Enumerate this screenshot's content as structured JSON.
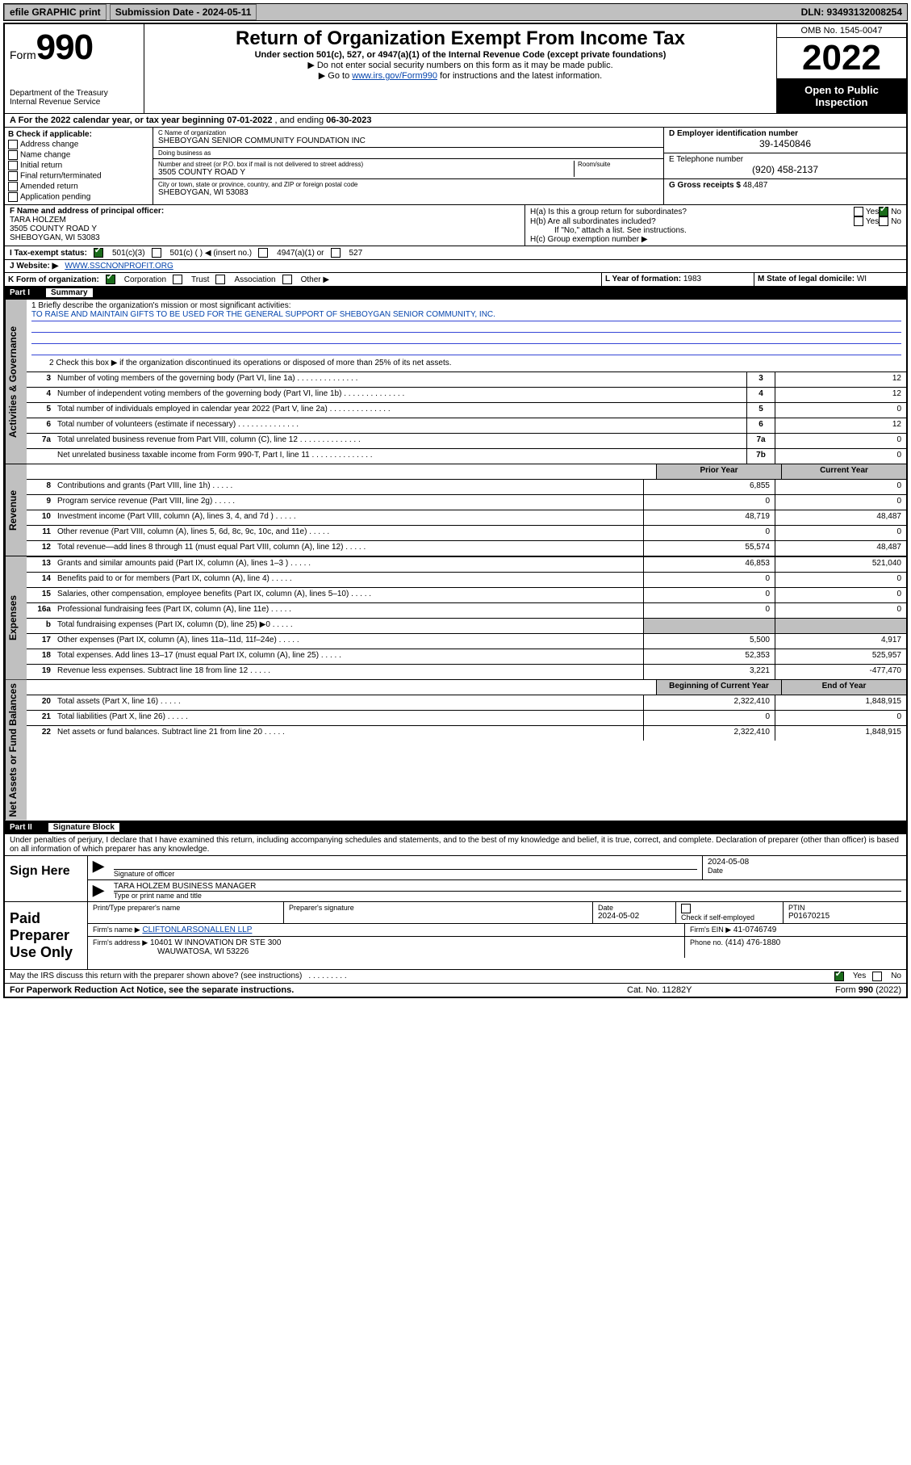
{
  "topbar": {
    "efile": "efile GRAPHIC print",
    "submission_label": "Submission Date - 2024-05-11",
    "dln": "DLN: 93493132008254"
  },
  "header": {
    "form_word": "Form",
    "form_num": "990",
    "dept": "Department of the Treasury",
    "irs": "Internal Revenue Service",
    "title": "Return of Organization Exempt From Income Tax",
    "sub": "Under section 501(c), 527, or 4947(a)(1) of the Internal Revenue Code (except private foundations)",
    "note1": "▶ Do not enter social security numbers on this form as it may be made public.",
    "note2_pre": "▶ Go to ",
    "note2_link": "www.irs.gov/Form990",
    "note2_post": " for instructions and the latest information.",
    "omb": "OMB No. 1545-0047",
    "year": "2022",
    "open": "Open to Public Inspection"
  },
  "lineA": {
    "text_pre": "A For the 2022 calendar year, or tax year beginning ",
    "begin": "07-01-2022",
    "mid": " , and ending ",
    "end": "06-30-2023"
  },
  "B": {
    "label": "B Check if applicable:",
    "opts": [
      "Address change",
      "Name change",
      "Initial return",
      "Final return/terminated",
      "Amended return",
      "Application pending"
    ]
  },
  "C": {
    "name_label": "C Name of organization",
    "name": "SHEBOYGAN SENIOR COMMUNITY FOUNDATION INC",
    "dba_label": "Doing business as",
    "dba": "",
    "addr_label": "Number and street (or P.O. box if mail is not delivered to street address)",
    "room_label": "Room/suite",
    "addr": "3505 COUNTY ROAD Y",
    "city_label": "City or town, state or province, country, and ZIP or foreign postal code",
    "city": "SHEBOYGAN, WI  53083"
  },
  "D": {
    "label": "D Employer identification number",
    "val": "39-1450846"
  },
  "E": {
    "label": "E Telephone number",
    "val": "(920) 458-2137"
  },
  "G": {
    "label": "G Gross receipts $",
    "val": "48,487"
  },
  "F": {
    "label": "F Name and address of principal officer:",
    "name": "TARA HOLZEM",
    "addr1": "3505 COUNTY ROAD Y",
    "addr2": "SHEBOYGAN, WI  53083"
  },
  "H": {
    "a": "H(a)  Is this a group return for subordinates?",
    "b": "H(b)  Are all subordinates included?",
    "b_note": "If \"No,\" attach a list. See instructions.",
    "c": "H(c)  Group exemption number ▶",
    "yes": "Yes",
    "no": "No"
  },
  "I": {
    "label": "I  Tax-exempt status:",
    "o1": "501(c)(3)",
    "o2": "501(c) (  ) ◀ (insert no.)",
    "o3": "4947(a)(1) or",
    "o4": "527"
  },
  "J": {
    "label": "J  Website: ▶",
    "val": "WWW.SSCNONPROFIT.ORG"
  },
  "K": {
    "label": "K Form of organization:",
    "o1": "Corporation",
    "o2": "Trust",
    "o3": "Association",
    "o4": "Other ▶"
  },
  "L": {
    "label": "L Year of formation:",
    "val": "1983"
  },
  "M": {
    "label": "M State of legal domicile:",
    "val": "WI"
  },
  "part1": {
    "tag": "Part I",
    "title": "Summary"
  },
  "summary": {
    "q1": "1  Briefly describe the organization's mission or most significant activities:",
    "mission": "TO RAISE AND MAINTAIN GIFTS TO BE USED FOR THE GENERAL SUPPORT OF SHEBOYGAN SENIOR COMMUNITY, INC.",
    "q2": "2    Check this box ▶         if the organization discontinued its operations or disposed of more than 25% of its net assets.",
    "rows_simple": [
      {
        "n": "3",
        "d": "Number of voting members of the governing body (Part VI, line 1a)",
        "k": "3",
        "v": "12"
      },
      {
        "n": "4",
        "d": "Number of independent voting members of the governing body (Part VI, line 1b)",
        "k": "4",
        "v": "12"
      },
      {
        "n": "5",
        "d": "Total number of individuals employed in calendar year 2022 (Part V, line 2a)",
        "k": "5",
        "v": "0"
      },
      {
        "n": "6",
        "d": "Total number of volunteers (estimate if necessary)",
        "k": "6",
        "v": "12"
      },
      {
        "n": "7a",
        "d": "Total unrelated business revenue from Part VIII, column (C), line 12",
        "k": "7a",
        "v": "0"
      },
      {
        "n": "",
        "d": "Net unrelated business taxable income from Form 990-T, Part I, line 11",
        "k": "7b",
        "v": "0"
      }
    ],
    "col_prior": "Prior Year",
    "col_current": "Current Year",
    "revenue": [
      {
        "n": "8",
        "d": "Contributions and grants (Part VIII, line 1h)",
        "p": "6,855",
        "c": "0"
      },
      {
        "n": "9",
        "d": "Program service revenue (Part VIII, line 2g)",
        "p": "0",
        "c": "0"
      },
      {
        "n": "10",
        "d": "Investment income (Part VIII, column (A), lines 3, 4, and 7d )",
        "p": "48,719",
        "c": "48,487"
      },
      {
        "n": "11",
        "d": "Other revenue (Part VIII, column (A), lines 5, 6d, 8c, 9c, 10c, and 11e)",
        "p": "0",
        "c": "0"
      },
      {
        "n": "12",
        "d": "Total revenue—add lines 8 through 11 (must equal Part VIII, column (A), line 12)",
        "p": "55,574",
        "c": "48,487"
      }
    ],
    "expenses": [
      {
        "n": "13",
        "d": "Grants and similar amounts paid (Part IX, column (A), lines 1–3 )",
        "p": "46,853",
        "c": "521,040"
      },
      {
        "n": "14",
        "d": "Benefits paid to or for members (Part IX, column (A), line 4)",
        "p": "0",
        "c": "0"
      },
      {
        "n": "15",
        "d": "Salaries, other compensation, employee benefits (Part IX, column (A), lines 5–10)",
        "p": "0",
        "c": "0"
      },
      {
        "n": "16a",
        "d": "Professional fundraising fees (Part IX, column (A), line 11e)",
        "p": "0",
        "c": "0"
      },
      {
        "n": "b",
        "d": "Total fundraising expenses (Part IX, column (D), line 25) ▶0",
        "p": "shade",
        "c": "shade"
      },
      {
        "n": "17",
        "d": "Other expenses (Part IX, column (A), lines 11a–11d, 11f–24e)",
        "p": "5,500",
        "c": "4,917"
      },
      {
        "n": "18",
        "d": "Total expenses. Add lines 13–17 (must equal Part IX, column (A), line 25)",
        "p": "52,353",
        "c": "525,957"
      },
      {
        "n": "19",
        "d": "Revenue less expenses. Subtract line 18 from line 12",
        "p": "3,221",
        "c": "-477,470"
      }
    ],
    "col_begin": "Beginning of Current Year",
    "col_end": "End of Year",
    "netassets": [
      {
        "n": "20",
        "d": "Total assets (Part X, line 16)",
        "p": "2,322,410",
        "c": "1,848,915"
      },
      {
        "n": "21",
        "d": "Total liabilities (Part X, line 26)",
        "p": "0",
        "c": "0"
      },
      {
        "n": "22",
        "d": "Net assets or fund balances. Subtract line 21 from line 20",
        "p": "2,322,410",
        "c": "1,848,915"
      }
    ]
  },
  "vtabs": {
    "gov": "Activities & Governance",
    "rev": "Revenue",
    "exp": "Expenses",
    "net": "Net Assets or Fund Balances"
  },
  "part2": {
    "tag": "Part II",
    "title": "Signature Block"
  },
  "sig": {
    "decl": "Under penalties of perjury, I declare that I have examined this return, including accompanying schedules and statements, and to the best of my knowledge and belief, it is true, correct, and complete. Declaration of preparer (other than officer) is based on all information of which preparer has any knowledge.",
    "sign_here": "Sign Here",
    "sig_officer": "Signature of officer",
    "date_lbl": "Date",
    "sig_date": "2024-05-08",
    "name_title": "TARA HOLZEM  BUSINESS MANAGER",
    "name_title_lbl": "Type or print name and title",
    "paid": "Paid Preparer Use Only",
    "p_name_lbl": "Print/Type preparer's name",
    "p_sig_lbl": "Preparer's signature",
    "p_date_lbl": "Date",
    "p_date": "2024-05-02",
    "p_check": "Check         if self-employed",
    "ptin_lbl": "PTIN",
    "ptin": "P01670215",
    "firm_name_lbl": "Firm's name    ▶",
    "firm_name": "CLIFTONLARSONALLEN LLP",
    "firm_ein_lbl": "Firm's EIN ▶",
    "firm_ein": "41-0746749",
    "firm_addr_lbl": "Firm's address ▶",
    "firm_addr1": "10401 W INNOVATION DR STE 300",
    "firm_addr2": "WAUWATOSA, WI  53226",
    "phone_lbl": "Phone no.",
    "phone": "(414) 476-1880",
    "may": "May the IRS discuss this return with the preparer shown above? (see instructions)"
  },
  "footer": {
    "pra": "For Paperwork Reduction Act Notice, see the separate instructions.",
    "cat": "Cat. No. 11282Y",
    "form": "Form 990 (2022)"
  }
}
